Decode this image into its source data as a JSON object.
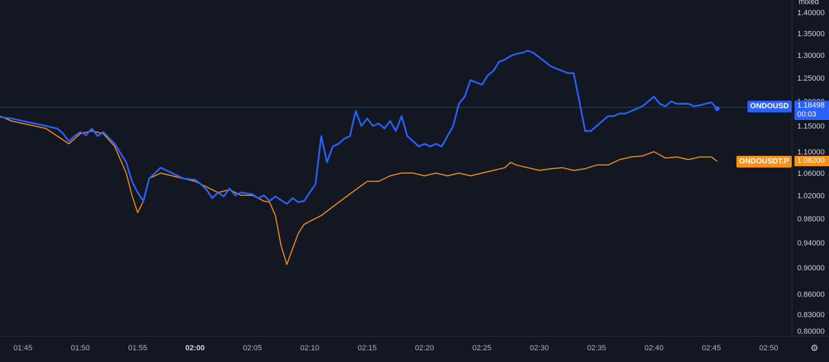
{
  "colors": {
    "background": "#131722",
    "series_blue": "#2962ff",
    "series_orange": "#f7931a",
    "axis_text": "#d1d4dc",
    "separator": "#2a2e39"
  },
  "axis_top_label": "mixed",
  "settings_icon": "gear-icon",
  "legend": {
    "blue_symbol": "ONDOUSD",
    "blue_price": "1.18498",
    "blue_countdown": "00:03",
    "orange_symbol": "ONDOUSDT.P",
    "orange_price": "1.08200"
  },
  "chart_data": {
    "type": "line",
    "y_scale": "log",
    "ylim": [
      0.8,
      1.43
    ],
    "xlim": [
      "01:43",
      "02:52"
    ],
    "y_ticks": [
      "1.40000",
      "1.35000",
      "1.30000",
      "1.25000",
      "1.20000",
      "1.15000",
      "1.10000",
      "1.06000",
      "1.02000",
      "0.98000",
      "0.94000",
      "0.90000",
      "0.86000",
      "0.83000",
      "0.80000"
    ],
    "x_ticks": [
      "01:45",
      "01:50",
      "01:55",
      "02:00",
      "02:05",
      "02:10",
      "02:15",
      "02:20",
      "02:25",
      "02:30",
      "02:35",
      "02:40",
      "02:45",
      "02:50"
    ],
    "x_ticks_bold": [
      "02:00"
    ],
    "grid": false,
    "series": [
      {
        "name": "ONDOUSD",
        "color": "#2962ff",
        "points": [
          [
            "01:43:00",
            1.168
          ],
          [
            "01:44:00",
            1.165
          ],
          [
            "01:45:00",
            1.16
          ],
          [
            "01:46:00",
            1.155
          ],
          [
            "01:47:00",
            1.15
          ],
          [
            "01:48:00",
            1.145
          ],
          [
            "01:48:30",
            1.135
          ],
          [
            "01:49:00",
            1.12
          ],
          [
            "01:49:30",
            1.13
          ],
          [
            "01:50:00",
            1.138
          ],
          [
            "01:50:30",
            1.132
          ],
          [
            "01:51:00",
            1.145
          ],
          [
            "01:51:30",
            1.13
          ],
          [
            "01:52:00",
            1.138
          ],
          [
            "01:53:00",
            1.115
          ],
          [
            "01:54:00",
            1.08
          ],
          [
            "01:54:30",
            1.045
          ],
          [
            "01:55:00",
            1.025
          ],
          [
            "01:55:30",
            1.01
          ],
          [
            "01:56:00",
            1.05
          ],
          [
            "01:57:00",
            1.07
          ],
          [
            "01:58:00",
            1.06
          ],
          [
            "01:59:00",
            1.05
          ],
          [
            "02:00:00",
            1.048
          ],
          [
            "02:00:30",
            1.04
          ],
          [
            "02:01:00",
            1.03
          ],
          [
            "02:01:30",
            1.015
          ],
          [
            "02:02:00",
            1.025
          ],
          [
            "02:02:30",
            1.018
          ],
          [
            "02:03:00",
            1.032
          ],
          [
            "02:03:30",
            1.02
          ],
          [
            "02:04:00",
            1.025
          ],
          [
            "02:05:00",
            1.022
          ],
          [
            "02:05:30",
            1.015
          ],
          [
            "02:06:00",
            1.02
          ],
          [
            "02:06:30",
            1.01
          ],
          [
            "02:07:00",
            1.018
          ],
          [
            "02:08:00",
            1.005
          ],
          [
            "02:08:30",
            1.015
          ],
          [
            "02:09:00",
            1.008
          ],
          [
            "02:09:30",
            1.01
          ],
          [
            "02:10:00",
            1.025
          ],
          [
            "02:10:30",
            1.04
          ],
          [
            "02:11:00",
            1.13
          ],
          [
            "02:11:30",
            1.08
          ],
          [
            "02:12:00",
            1.11
          ],
          [
            "02:12:30",
            1.115
          ],
          [
            "02:13:00",
            1.125
          ],
          [
            "02:13:30",
            1.13
          ],
          [
            "02:14:00",
            1.18
          ],
          [
            "02:14:30",
            1.15
          ],
          [
            "02:15:00",
            1.165
          ],
          [
            "02:15:30",
            1.15
          ],
          [
            "02:16:00",
            1.155
          ],
          [
            "02:16:30",
            1.145
          ],
          [
            "02:17:00",
            1.16
          ],
          [
            "02:17:30",
            1.14
          ],
          [
            "02:18:00",
            1.17
          ],
          [
            "02:18:30",
            1.13
          ],
          [
            "02:19:00",
            1.12
          ],
          [
            "02:19:30",
            1.11
          ],
          [
            "02:20:00",
            1.115
          ],
          [
            "02:20:30",
            1.11
          ],
          [
            "02:21:00",
            1.115
          ],
          [
            "02:21:30",
            1.11
          ],
          [
            "02:22:00",
            1.13
          ],
          [
            "02:22:30",
            1.15
          ],
          [
            "02:23:00",
            1.195
          ],
          [
            "02:23:30",
            1.21
          ],
          [
            "02:24:00",
            1.245
          ],
          [
            "02:24:30",
            1.24
          ],
          [
            "02:25:00",
            1.235
          ],
          [
            "02:25:30",
            1.255
          ],
          [
            "02:26:00",
            1.265
          ],
          [
            "02:26:30",
            1.285
          ],
          [
            "02:27:00",
            1.29
          ],
          [
            "02:27:30",
            1.298
          ],
          [
            "02:28:00",
            1.303
          ],
          [
            "02:28:30",
            1.305
          ],
          [
            "02:29:00",
            1.31
          ],
          [
            "02:29:30",
            1.305
          ],
          [
            "02:30:00",
            1.295
          ],
          [
            "02:30:30",
            1.285
          ],
          [
            "02:31:00",
            1.275
          ],
          [
            "02:31:30",
            1.27
          ],
          [
            "02:32:00",
            1.265
          ],
          [
            "02:32:30",
            1.26
          ],
          [
            "02:33:00",
            1.26
          ],
          [
            "02:33:30",
            1.2
          ],
          [
            "02:34:00",
            1.14
          ],
          [
            "02:34:30",
            1.14
          ],
          [
            "02:35:00",
            1.15
          ],
          [
            "02:35:30",
            1.16
          ],
          [
            "02:36:00",
            1.17
          ],
          [
            "02:36:30",
            1.17
          ],
          [
            "02:37:00",
            1.175
          ],
          [
            "02:37:30",
            1.175
          ],
          [
            "02:38:00",
            1.18
          ],
          [
            "02:38:30",
            1.185
          ],
          [
            "02:39:00",
            1.19
          ],
          [
            "02:39:30",
            1.2
          ],
          [
            "02:40:00",
            1.21
          ],
          [
            "02:40:30",
            1.195
          ],
          [
            "02:41:00",
            1.19
          ],
          [
            "02:41:30",
            1.2
          ],
          [
            "02:42:00",
            1.195
          ],
          [
            "02:42:30",
            1.195
          ],
          [
            "02:43:00",
            1.195
          ],
          [
            "02:43:30",
            1.19
          ],
          [
            "02:44:00",
            1.192
          ],
          [
            "02:44:30",
            1.195
          ],
          [
            "02:45:00",
            1.198
          ],
          [
            "02:45:30",
            1.185
          ]
        ]
      },
      {
        "name": "ONDOUSDT.P",
        "color": "#f7931a",
        "points": [
          [
            "01:43:00",
            1.17
          ],
          [
            "01:44:00",
            1.16
          ],
          [
            "01:45:00",
            1.155
          ],
          [
            "01:46:00",
            1.15
          ],
          [
            "01:47:00",
            1.145
          ],
          [
            "01:48:00",
            1.13
          ],
          [
            "01:49:00",
            1.115
          ],
          [
            "01:50:00",
            1.135
          ],
          [
            "01:51:00",
            1.14
          ],
          [
            "01:52:00",
            1.135
          ],
          [
            "01:53:00",
            1.11
          ],
          [
            "01:54:00",
            1.06
          ],
          [
            "01:54:30",
            1.02
          ],
          [
            "01:55:00",
            0.99
          ],
          [
            "01:55:30",
            1.01
          ],
          [
            "01:56:00",
            1.05
          ],
          [
            "01:57:00",
            1.06
          ],
          [
            "01:58:00",
            1.055
          ],
          [
            "01:59:00",
            1.05
          ],
          [
            "02:00:00",
            1.045
          ],
          [
            "02:01:00",
            1.035
          ],
          [
            "02:02:00",
            1.025
          ],
          [
            "02:03:00",
            1.03
          ],
          [
            "02:04:00",
            1.02
          ],
          [
            "02:05:00",
            1.02
          ],
          [
            "02:06:00",
            1.01
          ],
          [
            "02:06:30",
            1.008
          ],
          [
            "02:07:00",
            0.985
          ],
          [
            "02:07:30",
            0.935
          ],
          [
            "02:08:00",
            0.905
          ],
          [
            "02:08:30",
            0.93
          ],
          [
            "02:09:00",
            0.955
          ],
          [
            "02:09:30",
            0.97
          ],
          [
            "02:10:00",
            0.975
          ],
          [
            "02:11:00",
            0.985
          ],
          [
            "02:12:00",
            1.0
          ],
          [
            "02:13:00",
            1.015
          ],
          [
            "02:14:00",
            1.03
          ],
          [
            "02:15:00",
            1.045
          ],
          [
            "02:16:00",
            1.045
          ],
          [
            "02:17:00",
            1.055
          ],
          [
            "02:18:00",
            1.06
          ],
          [
            "02:19:00",
            1.06
          ],
          [
            "02:20:00",
            1.055
          ],
          [
            "02:21:00",
            1.06
          ],
          [
            "02:22:00",
            1.055
          ],
          [
            "02:23:00",
            1.06
          ],
          [
            "02:24:00",
            1.055
          ],
          [
            "02:25:00",
            1.06
          ],
          [
            "02:26:00",
            1.065
          ],
          [
            "02:27:00",
            1.07
          ],
          [
            "02:27:30",
            1.08
          ],
          [
            "02:28:00",
            1.075
          ],
          [
            "02:29:00",
            1.07
          ],
          [
            "02:30:00",
            1.065
          ],
          [
            "02:31:00",
            1.068
          ],
          [
            "02:32:00",
            1.07
          ],
          [
            "02:33:00",
            1.065
          ],
          [
            "02:34:00",
            1.068
          ],
          [
            "02:35:00",
            1.075
          ],
          [
            "02:36:00",
            1.075
          ],
          [
            "02:37:00",
            1.085
          ],
          [
            "02:38:00",
            1.09
          ],
          [
            "02:39:00",
            1.092
          ],
          [
            "02:40:00",
            1.1
          ],
          [
            "02:41:00",
            1.088
          ],
          [
            "02:42:00",
            1.09
          ],
          [
            "02:43:00",
            1.085
          ],
          [
            "02:44:00",
            1.09
          ],
          [
            "02:45:00",
            1.09
          ],
          [
            "02:45:30",
            1.082
          ]
        ]
      }
    ]
  }
}
